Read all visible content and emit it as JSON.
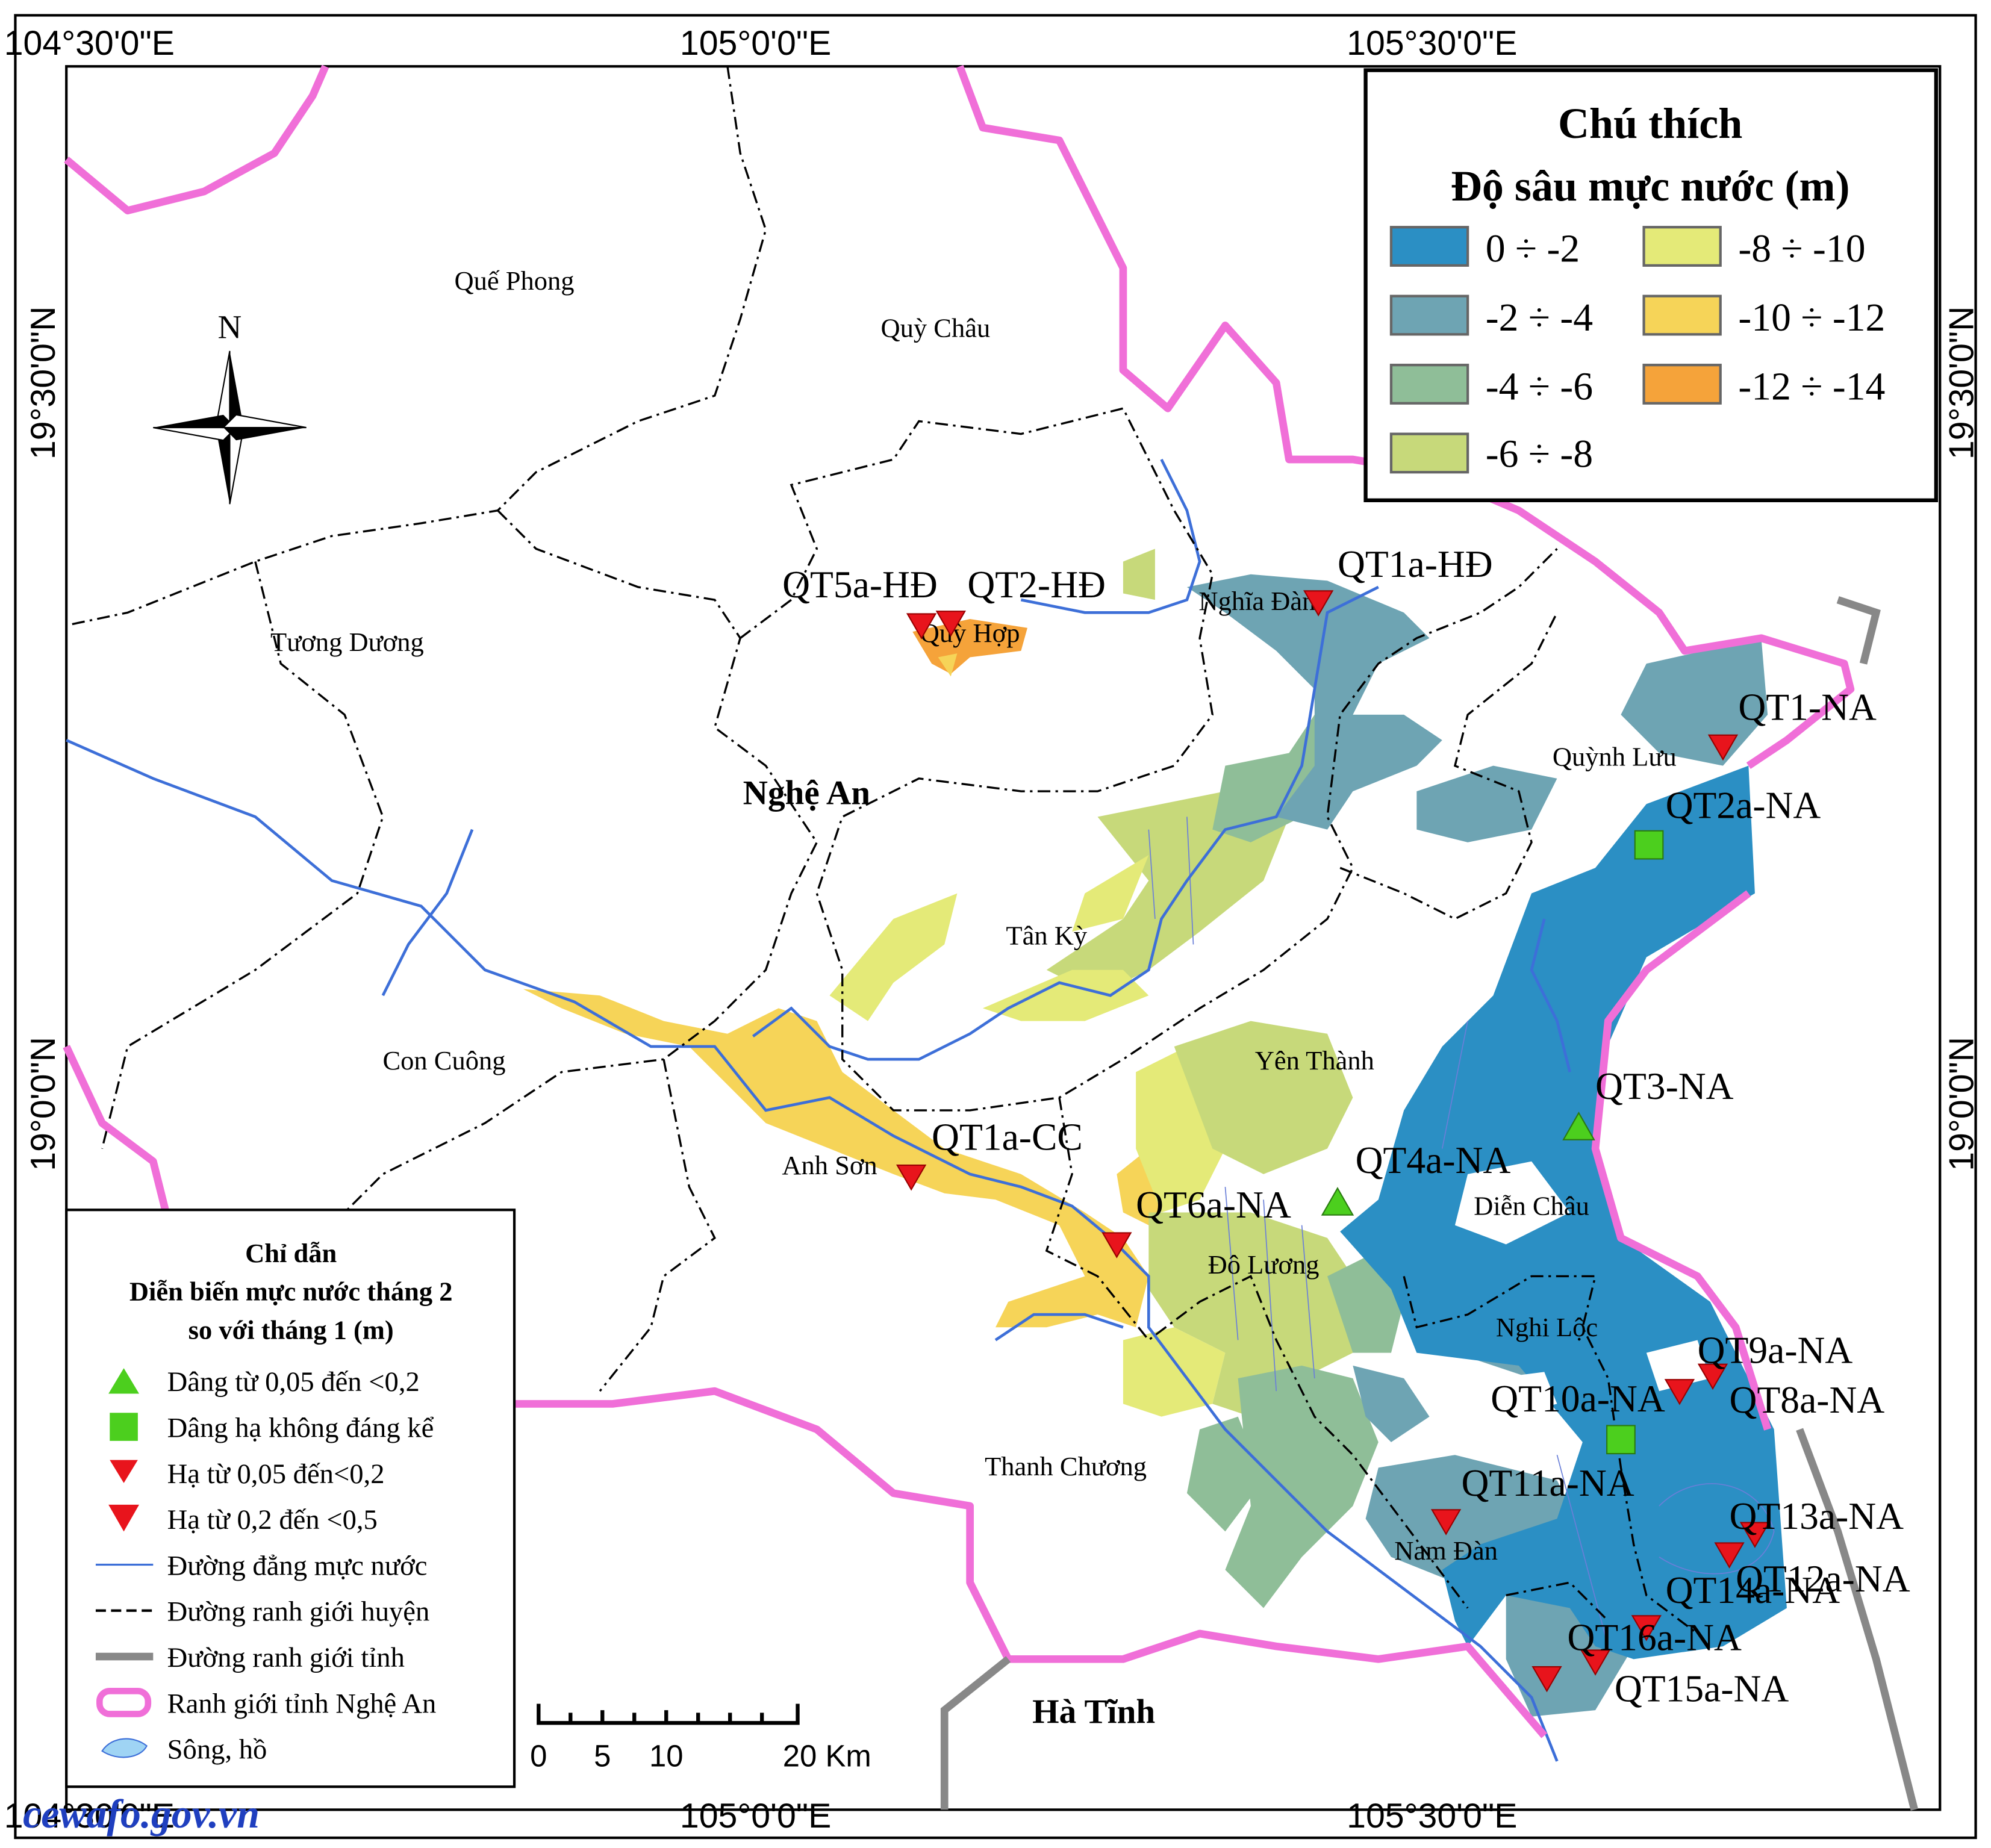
{
  "coordinates": {
    "top": [
      "104°30'0\"E",
      "105°0'0\"E",
      "105°30'0\"E"
    ],
    "bottom": [
      "104°30'0\"E",
      "105°0'0\"E",
      "105°30'0\"E"
    ],
    "left": [
      "19°30'0\"N",
      "19°0'0\"N"
    ],
    "right": [
      "19°30'0\"N",
      "19°0'0\"N"
    ]
  },
  "north": "N",
  "provinces": [
    "Nghệ An",
    "Hà Tĩnh"
  ],
  "districts": [
    "Quế Phong",
    "Quỳ Châu",
    "Tương Dương",
    "Quỳ Hợp",
    "Nghĩa Đàn",
    "Quỳnh Lưu",
    "Tân Kỳ",
    "Con Cuông",
    "Yên Thành",
    "Anh Sơn",
    "Diễn Châu",
    "Đô Lương",
    "Nghi Lộc",
    "Thanh Chương",
    "Nam Đàn"
  ],
  "wells": [
    "QT5a-HĐ",
    "QT2-HĐ",
    "QT1a-HĐ",
    "QT1-NA",
    "QT2a-NA",
    "QT3-NA",
    "QT4a-NA",
    "QT1a-CC",
    "QT6a-NA",
    "QT9a-NA",
    "QT10a-NA",
    "QT8a-NA",
    "QT11a-NA",
    "QT13a-NA",
    "QT12a-NA",
    "QT14a-NA",
    "QT16a-NA",
    "QT15a-NA"
  ],
  "legend_depth": {
    "title": "Chú thích",
    "subtitle": "Độ sâu mực nước (m)",
    "classes": [
      "0 ÷ -2",
      "-2 ÷ -4",
      "-4 ÷ -6",
      "-6 ÷ -8",
      "-8 ÷ -10",
      "-10 ÷ -12",
      "-12 ÷ -14"
    ]
  },
  "legend_change": {
    "title": [
      "Chỉ dẫn",
      "Diễn biến mực nước tháng 2",
      "so với tháng 1 (m)"
    ],
    "items": [
      "Dâng từ 0,05 đến <0,2",
      "Dâng hạ không đáng kể",
      "Hạ từ 0,05 đến<0,2",
      "Hạ từ 0,2 đến <0,5",
      "Đường đẳng mực nước",
      "Đường ranh giới huyện",
      "Đường ranh giới tỉnh",
      "Ranh giới tỉnh Nghệ An",
      "Sông, hồ"
    ]
  },
  "scale_bar": [
    "0",
    "5",
    "10",
    "20 Km"
  ],
  "source": "cewafo.gov.vn"
}
